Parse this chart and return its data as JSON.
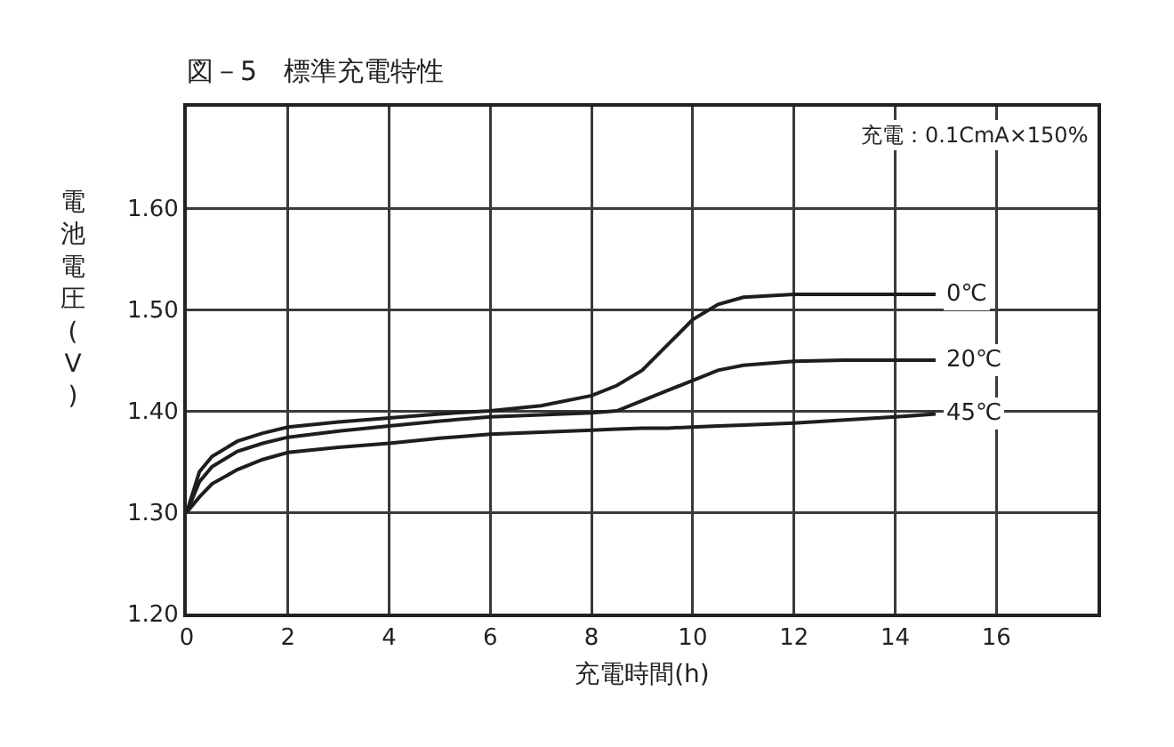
{
  "chart_data": {
    "type": "line",
    "title": "図－5　標準充電特性",
    "xlabel": "充電時間(h)",
    "ylabel": "電池電圧(V)",
    "annotations": [
      "充電：0.1CmA×150%"
    ],
    "x": [
      0,
      0.25,
      0.5,
      1,
      1.5,
      2,
      3,
      4,
      5,
      6,
      7,
      8,
      8.5,
      9,
      9.5,
      10,
      10.5,
      11,
      12,
      13,
      14,
      14.8
    ],
    "series": [
      {
        "name": "0℃",
        "color": "#1e1e1e",
        "values": [
          1.3,
          1.34,
          1.355,
          1.37,
          1.378,
          1.384,
          1.389,
          1.393,
          1.397,
          1.4,
          1.405,
          1.415,
          1.425,
          1.44,
          1.465,
          1.49,
          1.505,
          1.512,
          1.515,
          1.515,
          1.515,
          1.515
        ]
      },
      {
        "name": "20℃",
        "color": "#1e1e1e",
        "values": [
          1.3,
          1.33,
          1.345,
          1.36,
          1.368,
          1.374,
          1.38,
          1.385,
          1.39,
          1.394,
          1.396,
          1.398,
          1.4,
          1.41,
          1.42,
          1.43,
          1.44,
          1.445,
          1.449,
          1.45,
          1.45,
          1.45
        ]
      },
      {
        "name": "45℃",
        "color": "#1e1e1e",
        "values": [
          1.3,
          1.315,
          1.328,
          1.342,
          1.352,
          1.359,
          1.364,
          1.368,
          1.373,
          1.377,
          1.379,
          1.381,
          1.382,
          1.383,
          1.383,
          1.384,
          1.385,
          1.386,
          1.388,
          1.391,
          1.394,
          1.397
        ]
      }
    ],
    "xlim": [
      0,
      18
    ],
    "xticks": [
      0,
      2,
      4,
      6,
      8,
      10,
      12,
      14,
      16
    ],
    "ylim": [
      1.2,
      1.7
    ],
    "yticks": [
      {
        "value": 1.2,
        "label": "1.20"
      },
      {
        "value": 1.3,
        "label": "1.30"
      },
      {
        "value": 1.4,
        "label": "1.40"
      },
      {
        "value": 1.5,
        "label": "1.50"
      },
      {
        "value": 1.6,
        "label": "1.60"
      }
    ],
    "grid": true,
    "line_style": "solid"
  }
}
